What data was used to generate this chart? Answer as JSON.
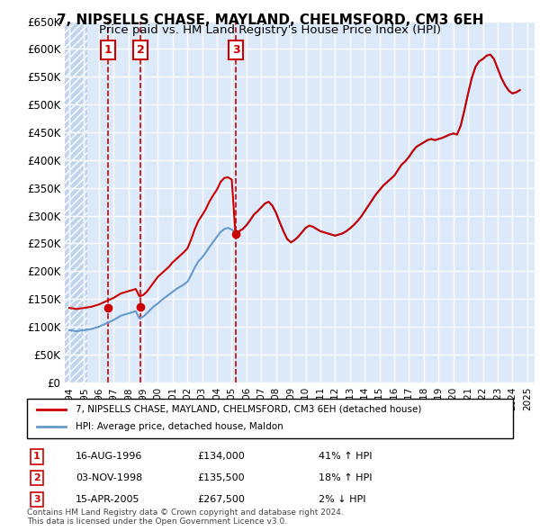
{
  "title": "7, NIPSELLS CHASE, MAYLAND, CHELMSFORD, CM3 6EH",
  "subtitle": "Price paid vs. HM Land Registry's House Price Index (HPI)",
  "xlabel": "",
  "ylabel": "",
  "ylim": [
    0,
    650000
  ],
  "yticks": [
    0,
    50000,
    100000,
    150000,
    200000,
    250000,
    300000,
    350000,
    400000,
    450000,
    500000,
    550000,
    600000,
    650000
  ],
  "ytick_labels": [
    "£0",
    "£50K",
    "£100K",
    "£150K",
    "£200K",
    "£250K",
    "£300K",
    "£350K",
    "£400K",
    "£450K",
    "£500K",
    "£550K",
    "£600K",
    "£650K"
  ],
  "xlim_start": 1994,
  "xlim_end": 2025.5,
  "background_color": "#dce9f8",
  "hatch_color": "#c0d4ee",
  "grid_color": "#ffffff",
  "sale_color": "#cc0000",
  "hpi_color": "#6699cc",
  "legend_label_sale": "7, NIPSELLS CHASE, MAYLAND, CHELMSFORD, CM3 6EH (detached house)",
  "legend_label_hpi": "HPI: Average price, detached house, Maldon",
  "transactions": [
    {
      "num": 1,
      "date_x": 1996.62,
      "price": 134000,
      "label": "1",
      "vline_x": 1996.62
    },
    {
      "num": 2,
      "date_x": 1998.84,
      "price": 135500,
      "label": "2",
      "vline_x": 1998.84
    },
    {
      "num": 3,
      "date_x": 2005.29,
      "price": 267500,
      "label": "3",
      "vline_x": 2005.29
    }
  ],
  "table_data": [
    {
      "num": "1",
      "date": "16-AUG-1996",
      "price": "£134,000",
      "change": "41% ↑ HPI"
    },
    {
      "num": "2",
      "date": "03-NOV-1998",
      "price": "£135,500",
      "change": "18% ↑ HPI"
    },
    {
      "num": "3",
      "date": "15-APR-2005",
      "price": "£267,500",
      "change": "2% ↓ HPI"
    }
  ],
  "footnote": "Contains HM Land Registry data © Crown copyright and database right 2024.\nThis data is licensed under the Open Government Licence v3.0.",
  "hpi_data_x": [
    1994.0,
    1994.25,
    1994.5,
    1994.75,
    1995.0,
    1995.25,
    1995.5,
    1995.75,
    1996.0,
    1996.25,
    1996.5,
    1996.75,
    1997.0,
    1997.25,
    1997.5,
    1997.75,
    1998.0,
    1998.25,
    1998.5,
    1998.75,
    1999.0,
    1999.25,
    1999.5,
    1999.75,
    2000.0,
    2000.25,
    2000.5,
    2000.75,
    2001.0,
    2001.25,
    2001.5,
    2001.75,
    2002.0,
    2002.25,
    2002.5,
    2002.75,
    2003.0,
    2003.25,
    2003.5,
    2003.75,
    2004.0,
    2004.25,
    2004.5,
    2004.75,
    2005.0,
    2005.25,
    2005.5,
    2005.75,
    2006.0,
    2006.25,
    2006.5,
    2006.75,
    2007.0,
    2007.25,
    2007.5,
    2007.75,
    2008.0,
    2008.25,
    2008.5,
    2008.75,
    2009.0,
    2009.25,
    2009.5,
    2009.75,
    2010.0,
    2010.25,
    2010.5,
    2010.75,
    2011.0,
    2011.25,
    2011.5,
    2011.75,
    2012.0,
    2012.25,
    2012.5,
    2012.75,
    2013.0,
    2013.25,
    2013.5,
    2013.75,
    2014.0,
    2014.25,
    2014.5,
    2014.75,
    2015.0,
    2015.25,
    2015.5,
    2015.75,
    2016.0,
    2016.25,
    2016.5,
    2016.75,
    2017.0,
    2017.25,
    2017.5,
    2017.75,
    2018.0,
    2018.25,
    2018.5,
    2018.75,
    2019.0,
    2019.25,
    2019.5,
    2019.75,
    2020.0,
    2020.25,
    2020.5,
    2020.75,
    2021.0,
    2021.25,
    2021.5,
    2021.75,
    2022.0,
    2022.25,
    2022.5,
    2022.75,
    2023.0,
    2023.25,
    2023.5,
    2023.75,
    2024.0,
    2024.25,
    2024.5
  ],
  "hpi_data_y": [
    94000,
    93000,
    92000,
    93000,
    94000,
    95000,
    96000,
    98000,
    100000,
    103000,
    106000,
    109000,
    112000,
    116000,
    120000,
    122000,
    124000,
    126000,
    128000,
    115000,
    118000,
    124000,
    131000,
    137000,
    142000,
    148000,
    153000,
    158000,
    163000,
    168000,
    172000,
    176000,
    181000,
    193000,
    207000,
    218000,
    225000,
    234000,
    244000,
    253000,
    262000,
    271000,
    276000,
    278000,
    275000,
    270000,
    272000,
    276000,
    283000,
    292000,
    302000,
    308000,
    315000,
    322000,
    325000,
    318000,
    305000,
    288000,
    272000,
    258000,
    252000,
    256000,
    262000,
    270000,
    278000,
    282000,
    280000,
    276000,
    272000,
    270000,
    268000,
    266000,
    264000,
    266000,
    268000,
    272000,
    277000,
    283000,
    290000,
    298000,
    308000,
    318000,
    328000,
    338000,
    346000,
    354000,
    360000,
    366000,
    372000,
    382000,
    392000,
    398000,
    406000,
    416000,
    424000,
    428000,
    432000,
    436000,
    438000,
    436000,
    438000,
    440000,
    443000,
    446000,
    448000,
    446000,
    462000,
    490000,
    520000,
    548000,
    568000,
    578000,
    582000,
    588000,
    590000,
    582000,
    565000,
    548000,
    535000,
    525000,
    520000,
    522000,
    526000
  ],
  "sale_data_x": [
    1994.0,
    1994.25,
    1994.5,
    1994.75,
    1995.0,
    1995.25,
    1995.5,
    1995.75,
    1996.0,
    1996.25,
    1996.5,
    1996.75,
    1997.0,
    1997.25,
    1997.5,
    1997.75,
    1998.0,
    1998.25,
    1998.5,
    1998.75,
    1999.0,
    1999.25,
    1999.5,
    1999.75,
    2000.0,
    2000.25,
    2000.5,
    2000.75,
    2001.0,
    2001.25,
    2001.5,
    2001.75,
    2002.0,
    2002.25,
    2002.5,
    2002.75,
    2003.0,
    2003.25,
    2003.5,
    2003.75,
    2004.0,
    2004.25,
    2004.5,
    2004.75,
    2005.0,
    2005.25,
    2005.5,
    2005.75,
    2006.0,
    2006.25,
    2006.5,
    2006.75,
    2007.0,
    2007.25,
    2007.5,
    2007.75,
    2008.0,
    2008.25,
    2008.5,
    2008.75,
    2009.0,
    2009.25,
    2009.5,
    2009.75,
    2010.0,
    2010.25,
    2010.5,
    2010.75,
    2011.0,
    2011.25,
    2011.5,
    2011.75,
    2012.0,
    2012.25,
    2012.5,
    2012.75,
    2013.0,
    2013.25,
    2013.5,
    2013.75,
    2014.0,
    2014.25,
    2014.5,
    2014.75,
    2015.0,
    2015.25,
    2015.5,
    2015.75,
    2016.0,
    2016.25,
    2016.5,
    2016.75,
    2017.0,
    2017.25,
    2017.5,
    2017.75,
    2018.0,
    2018.25,
    2018.5,
    2018.75,
    2019.0,
    2019.25,
    2019.5,
    2019.75,
    2020.0,
    2020.25,
    2020.5,
    2020.75,
    2021.0,
    2021.25,
    2021.5,
    2021.75,
    2022.0,
    2022.25,
    2022.5,
    2022.75,
    2023.0,
    2023.25,
    2023.5,
    2023.75,
    2024.0,
    2024.25,
    2024.5
  ],
  "sale_data_y": [
    134000,
    133000,
    132000,
    133000,
    134000,
    135000,
    136000,
    138000,
    140000,
    143000,
    146000,
    149000,
    152000,
    156000,
    160000,
    162000,
    164000,
    166000,
    168000,
    155000,
    157000,
    163000,
    172000,
    181000,
    190000,
    196000,
    202000,
    208000,
    216000,
    222000,
    228000,
    234000,
    241000,
    257000,
    276000,
    291000,
    301000,
    312000,
    326000,
    337000,
    347000,
    361000,
    368000,
    369000,
    365000,
    268000,
    272000,
    276000,
    283000,
    292000,
    302000,
    308000,
    315000,
    322000,
    325000,
    318000,
    305000,
    288000,
    272000,
    258000,
    252000,
    256000,
    262000,
    270000,
    278000,
    282000,
    280000,
    276000,
    272000,
    270000,
    268000,
    266000,
    264000,
    266000,
    268000,
    272000,
    277000,
    283000,
    290000,
    298000,
    308000,
    318000,
    328000,
    338000,
    346000,
    354000,
    360000,
    366000,
    372000,
    382000,
    392000,
    398000,
    406000,
    416000,
    424000,
    428000,
    432000,
    436000,
    438000,
    436000,
    438000,
    440000,
    443000,
    446000,
    448000,
    446000,
    462000,
    490000,
    520000,
    548000,
    568000,
    578000,
    582000,
    588000,
    590000,
    582000,
    565000,
    548000,
    535000,
    525000,
    520000,
    522000,
    526000
  ]
}
